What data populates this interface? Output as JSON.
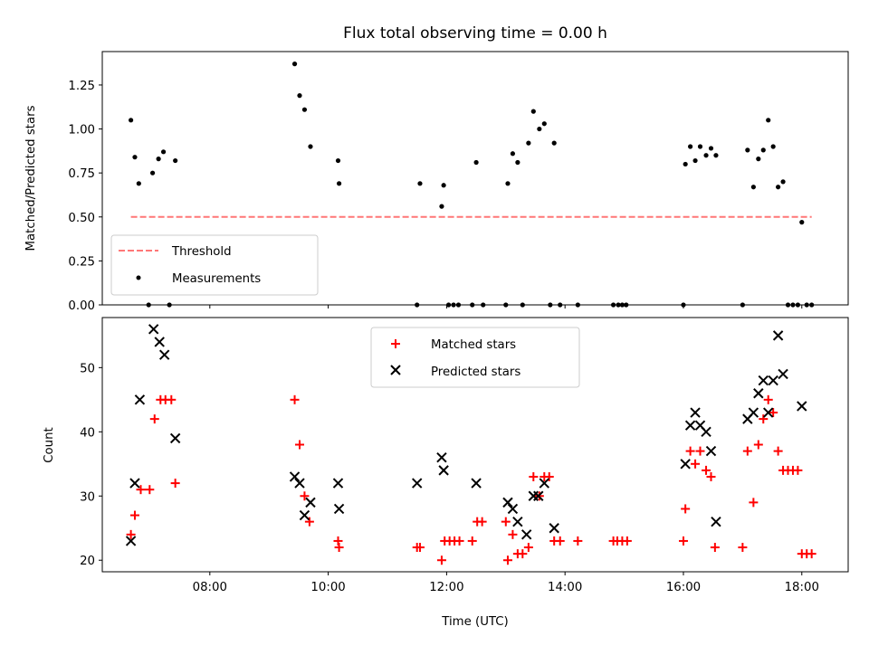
{
  "chart_data": [
    {
      "type": "scatter",
      "title": "Flux total observing time = 0.00 h",
      "xlabel": "",
      "ylabel": "Matched/Predicted stars",
      "ylim": [
        0,
        1.44
      ],
      "xlim": [
        "06:11",
        "18:47"
      ],
      "y_ticks": [
        "0.00",
        "0.25",
        "0.50",
        "0.75",
        "1.00",
        "1.25"
      ],
      "legend_position": "lower-left",
      "threshold": {
        "name": "Threshold",
        "value": 0.5,
        "x_range": [
          "06:40",
          "18:10"
        ],
        "color": "#ff7777",
        "style": "dashed"
      },
      "series": [
        {
          "name": "Measurements",
          "color": "#000000",
          "points": [
            [
              "06:40",
              1.05
            ],
            [
              "06:44",
              0.84
            ],
            [
              "06:48",
              0.69
            ],
            [
              "06:58",
              0.0
            ],
            [
              "07:02",
              0.75
            ],
            [
              "07:08",
              0.83
            ],
            [
              "07:13",
              0.87
            ],
            [
              "07:19",
              0.0
            ],
            [
              "07:25",
              0.82
            ],
            [
              "09:26",
              1.37
            ],
            [
              "09:31",
              1.19
            ],
            [
              "09:36",
              1.11
            ],
            [
              "09:42",
              0.9
            ],
            [
              "10:10",
              0.82
            ],
            [
              "10:11",
              0.69
            ],
            [
              "11:30",
              0.0
            ],
            [
              "11:33",
              0.69
            ],
            [
              "11:55",
              0.56
            ],
            [
              "11:57",
              0.68
            ],
            [
              "12:02",
              0.0
            ],
            [
              "12:07",
              0.0
            ],
            [
              "12:12",
              0.0
            ],
            [
              "12:26",
              0.0
            ],
            [
              "12:30",
              0.81
            ],
            [
              "12:37",
              0.0
            ],
            [
              "13:00",
              0.0
            ],
            [
              "13:02",
              0.69
            ],
            [
              "13:07",
              0.86
            ],
            [
              "13:12",
              0.81
            ],
            [
              "13:17",
              0.0
            ],
            [
              "13:23",
              0.92
            ],
            [
              "13:28",
              1.1
            ],
            [
              "13:34",
              1.0
            ],
            [
              "13:39",
              1.03
            ],
            [
              "13:45",
              0.0
            ],
            [
              "13:49",
              0.92
            ],
            [
              "13:55",
              0.0
            ],
            [
              "14:13",
              0.0
            ],
            [
              "14:49",
              0.0
            ],
            [
              "14:54",
              0.0
            ],
            [
              "14:58",
              0.0
            ],
            [
              "15:02",
              0.0
            ],
            [
              "16:00",
              0.0
            ],
            [
              "16:02",
              0.8
            ],
            [
              "16:07",
              0.9
            ],
            [
              "16:12",
              0.82
            ],
            [
              "16:17",
              0.9
            ],
            [
              "16:23",
              0.85
            ],
            [
              "16:28",
              0.89
            ],
            [
              "16:33",
              0.85
            ],
            [
              "17:00",
              0.0
            ],
            [
              "17:05",
              0.88
            ],
            [
              "17:11",
              0.67
            ],
            [
              "17:16",
              0.83
            ],
            [
              "17:21",
              0.88
            ],
            [
              "17:26",
              1.05
            ],
            [
              "17:31",
              0.9
            ],
            [
              "17:36",
              0.67
            ],
            [
              "17:41",
              0.7
            ],
            [
              "17:46",
              0.0
            ],
            [
              "17:51",
              0.0
            ],
            [
              "17:56",
              0.0
            ],
            [
              "18:00",
              0.47
            ],
            [
              "18:05",
              0.0
            ],
            [
              "18:10",
              0.0
            ]
          ]
        }
      ]
    },
    {
      "type": "scatter",
      "title": "",
      "xlabel": "Time (UTC)",
      "ylabel": "Count",
      "ylim": [
        18.2,
        57.8
      ],
      "xlim": [
        "06:11",
        "18:47"
      ],
      "x_ticks": [
        "08:00",
        "10:00",
        "12:00",
        "14:00",
        "16:00",
        "18:00"
      ],
      "y_ticks": [
        "20",
        "30",
        "40",
        "50"
      ],
      "legend_position": "upper-center",
      "series": [
        {
          "name": "Matched stars",
          "color": "#ff0000",
          "marker": "plus",
          "points": [
            [
              "06:40",
              24
            ],
            [
              "06:44",
              27
            ],
            [
              "06:50",
              31
            ],
            [
              "06:59",
              31
            ],
            [
              "07:04",
              42
            ],
            [
              "07:10",
              45
            ],
            [
              "07:15",
              45
            ],
            [
              "07:21",
              45
            ],
            [
              "07:25",
              32
            ],
            [
              "09:26",
              45
            ],
            [
              "09:31",
              38
            ],
            [
              "09:36",
              30
            ],
            [
              "09:41",
              26
            ],
            [
              "10:10",
              23
            ],
            [
              "10:11",
              22
            ],
            [
              "11:30",
              22
            ],
            [
              "11:33",
              22
            ],
            [
              "11:55",
              20
            ],
            [
              "11:58",
              23
            ],
            [
              "12:03",
              23
            ],
            [
              "12:08",
              23
            ],
            [
              "12:13",
              23
            ],
            [
              "12:26",
              23
            ],
            [
              "12:31",
              26
            ],
            [
              "12:36",
              26
            ],
            [
              "13:00",
              26
            ],
            [
              "13:02",
              20
            ],
            [
              "13:07",
              24
            ],
            [
              "13:12",
              21
            ],
            [
              "13:17",
              21
            ],
            [
              "13:23",
              22
            ],
            [
              "13:28",
              33
            ],
            [
              "13:34",
              30
            ],
            [
              "13:39",
              33
            ],
            [
              "13:44",
              33
            ],
            [
              "13:49",
              23
            ],
            [
              "13:55",
              23
            ],
            [
              "14:13",
              23
            ],
            [
              "14:49",
              23
            ],
            [
              "14:53",
              23
            ],
            [
              "14:58",
              23
            ],
            [
              "15:03",
              23
            ],
            [
              "16:00",
              23
            ],
            [
              "16:02",
              28
            ],
            [
              "16:07",
              37
            ],
            [
              "16:12",
              35
            ],
            [
              "16:17",
              37
            ],
            [
              "16:23",
              34
            ],
            [
              "16:28",
              33
            ],
            [
              "16:32",
              22
            ],
            [
              "17:00",
              22
            ],
            [
              "17:05",
              37
            ],
            [
              "17:11",
              29
            ],
            [
              "17:16",
              38
            ],
            [
              "17:21",
              42
            ],
            [
              "17:26",
              45
            ],
            [
              "17:31",
              43
            ],
            [
              "17:36",
              37
            ],
            [
              "17:41",
              34
            ],
            [
              "17:46",
              34
            ],
            [
              "17:51",
              34
            ],
            [
              "17:56",
              34
            ],
            [
              "18:00",
              21
            ],
            [
              "18:05",
              21
            ],
            [
              "18:10",
              21
            ]
          ]
        },
        {
          "name": "Predicted stars",
          "color": "#000000",
          "marker": "x",
          "points": [
            [
              "06:40",
              23
            ],
            [
              "06:44",
              32
            ],
            [
              "06:49",
              45
            ],
            [
              "07:03",
              56
            ],
            [
              "07:09",
              54
            ],
            [
              "07:14",
              52
            ],
            [
              "07:25",
              39
            ],
            [
              "09:26",
              33
            ],
            [
              "09:31",
              32
            ],
            [
              "09:36",
              27
            ],
            [
              "09:42",
              29
            ],
            [
              "10:10",
              32
            ],
            [
              "10:11",
              28
            ],
            [
              "11:30",
              32
            ],
            [
              "11:55",
              36
            ],
            [
              "11:57",
              34
            ],
            [
              "12:30",
              32
            ],
            [
              "13:02",
              29
            ],
            [
              "13:07",
              28
            ],
            [
              "13:12",
              26
            ],
            [
              "13:21",
              24
            ],
            [
              "13:28",
              30
            ],
            [
              "13:33",
              30
            ],
            [
              "13:39",
              32
            ],
            [
              "13:49",
              25
            ],
            [
              "16:02",
              35
            ],
            [
              "16:07",
              41
            ],
            [
              "16:12",
              43
            ],
            [
              "16:17",
              41
            ],
            [
              "16:23",
              40
            ],
            [
              "16:28",
              37
            ],
            [
              "16:33",
              26
            ],
            [
              "17:05",
              42
            ],
            [
              "17:11",
              43
            ],
            [
              "17:16",
              46
            ],
            [
              "17:21",
              48
            ],
            [
              "17:26",
              43
            ],
            [
              "17:31",
              48
            ],
            [
              "17:36",
              55
            ],
            [
              "17:41",
              49
            ],
            [
              "18:00",
              44
            ]
          ]
        }
      ]
    }
  ]
}
